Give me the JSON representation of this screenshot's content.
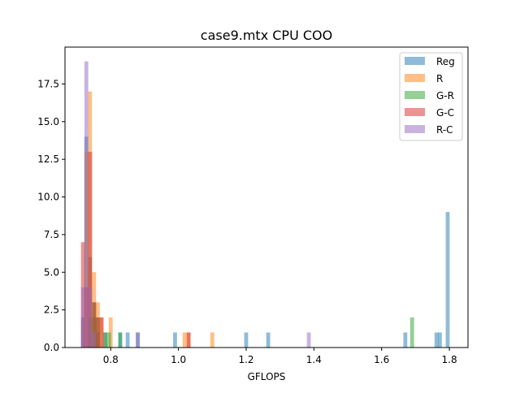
{
  "chart_data": {
    "type": "histogram",
    "title": "case9.mtx CPU COO",
    "xlabel": "GFLOPS",
    "ylabel": "",
    "xlim": [
      0.665,
      1.855
    ],
    "ylim": [
      0,
      19.95
    ],
    "xticks": [
      0.8,
      1.0,
      1.2,
      1.4,
      1.6,
      1.8
    ],
    "yticks": [
      0.0,
      2.5,
      5.0,
      7.5,
      10.0,
      12.5,
      15.0,
      17.5
    ],
    "bin_width": 0.0115,
    "bar_opacity": 0.5,
    "grid": false,
    "legend_position": "top-right",
    "series": [
      {
        "name": "Reg",
        "color": "#1f77b4",
        "bins": [
          {
            "x": 0.718,
            "count": 2
          },
          {
            "x": 0.728,
            "count": 14
          },
          {
            "x": 0.739,
            "count": 6
          },
          {
            "x": 0.751,
            "count": 2
          },
          {
            "x": 0.762,
            "count": 1
          },
          {
            "x": 0.784,
            "count": 1
          },
          {
            "x": 0.828,
            "count": 1
          },
          {
            "x": 0.85,
            "count": 1
          },
          {
            "x": 0.88,
            "count": 1
          },
          {
            "x": 0.99,
            "count": 1
          },
          {
            "x": 1.2,
            "count": 1
          },
          {
            "x": 1.265,
            "count": 1
          },
          {
            "x": 1.67,
            "count": 1
          },
          {
            "x": 1.762,
            "count": 1
          },
          {
            "x": 1.772,
            "count": 1
          },
          {
            "x": 1.795,
            "count": 9
          }
        ]
      },
      {
        "name": "R",
        "color": "#ff7f0e",
        "bins": [
          {
            "x": 0.728,
            "count": 13
          },
          {
            "x": 0.739,
            "count": 17
          },
          {
            "x": 0.751,
            "count": 5
          },
          {
            "x": 0.762,
            "count": 3
          },
          {
            "x": 0.773,
            "count": 2
          },
          {
            "x": 0.8,
            "count": 2
          },
          {
            "x": 1.018,
            "count": 1
          },
          {
            "x": 1.03,
            "count": 1
          },
          {
            "x": 1.1,
            "count": 1
          }
        ]
      },
      {
        "name": "G-R",
        "color": "#2ca02c",
        "bins": [
          {
            "x": 0.739,
            "count": 2
          },
          {
            "x": 0.751,
            "count": 3
          },
          {
            "x": 0.762,
            "count": 2
          },
          {
            "x": 0.784,
            "count": 1
          },
          {
            "x": 0.795,
            "count": 1
          },
          {
            "x": 0.828,
            "count": 1
          },
          {
            "x": 1.69,
            "count": 2
          }
        ]
      },
      {
        "name": "G-C",
        "color": "#d62728",
        "bins": [
          {
            "x": 0.718,
            "count": 7
          },
          {
            "x": 0.728,
            "count": 4
          },
          {
            "x": 0.739,
            "count": 13
          },
          {
            "x": 0.751,
            "count": 3
          },
          {
            "x": 0.762,
            "count": 2
          },
          {
            "x": 0.773,
            "count": 2
          },
          {
            "x": 1.03,
            "count": 1
          }
        ]
      },
      {
        "name": "R-C",
        "color": "#9467bd",
        "bins": [
          {
            "x": 0.718,
            "count": 4
          },
          {
            "x": 0.728,
            "count": 19
          },
          {
            "x": 0.739,
            "count": 4
          },
          {
            "x": 0.751,
            "count": 1
          },
          {
            "x": 0.88,
            "count": 1
          },
          {
            "x": 1.385,
            "count": 1
          }
        ]
      }
    ]
  }
}
